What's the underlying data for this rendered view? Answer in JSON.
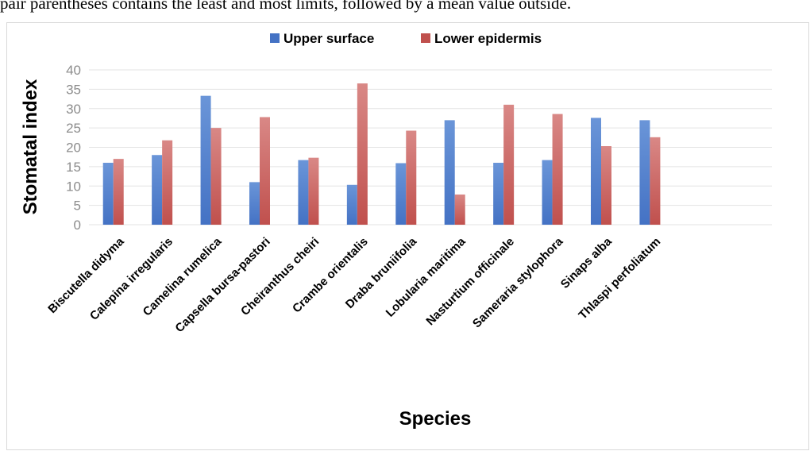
{
  "caption": "pair parentheses contains the least and most limits, followed by a mean value outside.",
  "chart_data": {
    "type": "bar",
    "xlabel": "Species",
    "ylabel": "Stomatal index",
    "ylim": [
      0,
      40
    ],
    "yticks": [
      0,
      5,
      10,
      15,
      20,
      25,
      30,
      35,
      40
    ],
    "grid": true,
    "legend_position": "top-center",
    "categories": [
      "Biscutella didyma",
      "Calepina irregularis",
      "Camelina rumelica",
      "Capsella bursa-pastori",
      "Cheiranthus cheiri",
      "Crambe orientalis",
      "Draba bruniifolia",
      "Lobularia maritima",
      "Nasturtium officinale",
      "Sameraria stylophora",
      "Sinaps alba",
      "Thlaspi perfoliatum"
    ],
    "series": [
      {
        "name": "Upper surface",
        "color": "#4472c4",
        "values": [
          16,
          18,
          33.3,
          11,
          16.7,
          10.3,
          15.9,
          27,
          16,
          16.7,
          27.6,
          27
        ]
      },
      {
        "name": "Lower epidermis",
        "color": "#c0504d",
        "values": [
          17,
          21.8,
          25,
          27.8,
          17.3,
          36.5,
          24.3,
          7.8,
          31,
          28.6,
          20.3,
          22.6
        ]
      }
    ]
  }
}
